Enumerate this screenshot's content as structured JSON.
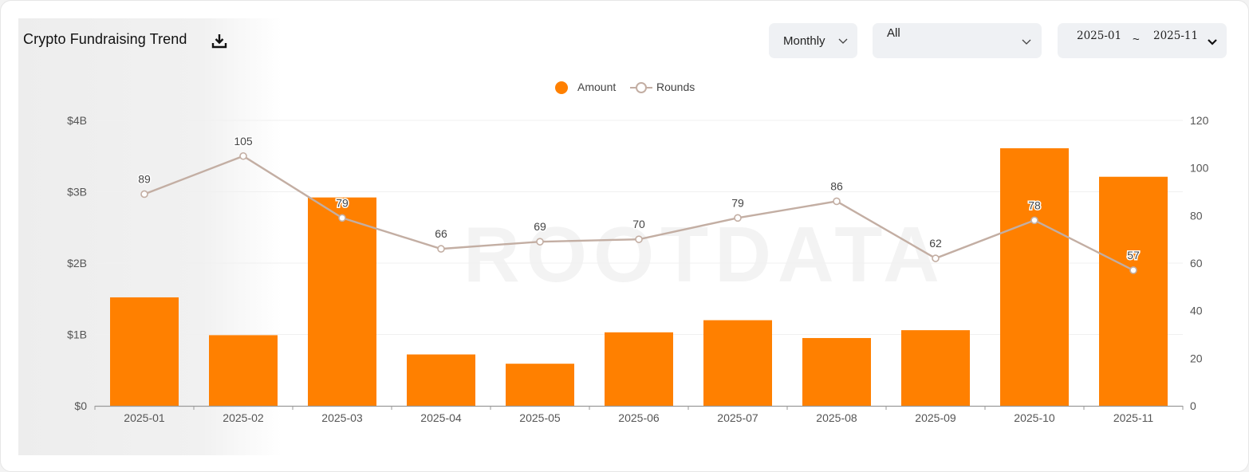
{
  "header": {
    "title": "Crypto Fundraising Trend",
    "download_icon": "download-icon"
  },
  "controls": {
    "period": "Monthly",
    "filter": "All",
    "range_start": "2025-01",
    "range_sep": "~",
    "range_end": "2025-11"
  },
  "watermark": "ROOTDATA",
  "colors": {
    "amount": "#ff8000",
    "rounds_line": "#c3aea3",
    "accent_bg": "#eff1f4"
  },
  "chart_data": {
    "type": "bar",
    "categories": [
      "2025-01",
      "2025-02",
      "2025-03",
      "2025-04",
      "2025-05",
      "2025-06",
      "2025-07",
      "2025-08",
      "2025-09",
      "2025-10",
      "2025-11"
    ],
    "series": [
      {
        "name": "Amount",
        "type": "bar",
        "axis": "left",
        "unit": "B USD",
        "values": [
          1.52,
          0.99,
          2.92,
          0.72,
          0.59,
          1.03,
          1.2,
          0.95,
          1.06,
          3.61,
          3.21
        ]
      },
      {
        "name": "Rounds",
        "type": "line",
        "axis": "right",
        "values": [
          89,
          105,
          79,
          66,
          69,
          70,
          79,
          86,
          62,
          78,
          57
        ],
        "labels": [
          "89",
          "105",
          "79",
          "66",
          "69",
          "70",
          "79",
          "86",
          "62",
          "78",
          "57"
        ]
      }
    ],
    "y_left": {
      "ticks": [
        0,
        1,
        2,
        3,
        4
      ],
      "tick_labels": [
        "$0",
        "$1B",
        "$2B",
        "$3B",
        "$4B"
      ],
      "ylim": [
        0,
        4
      ]
    },
    "y_right": {
      "ticks": [
        0,
        20,
        40,
        60,
        80,
        100,
        120
      ],
      "tick_labels": [
        "0",
        "20",
        "40",
        "60",
        "80",
        "100",
        "120"
      ],
      "ylim": [
        0,
        120
      ]
    },
    "legend": {
      "placement": "top-center",
      "items": [
        "Amount",
        "Rounds"
      ]
    },
    "grid": true,
    "title": "",
    "xlabel": "",
    "ylabel": ""
  }
}
